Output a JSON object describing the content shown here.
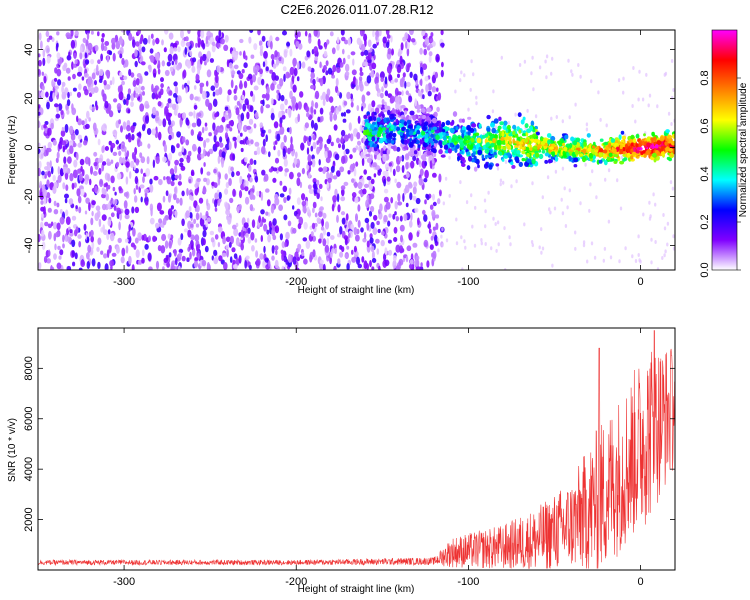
{
  "title": "C2E6.2026.011.07.28.R12",
  "chart_data": [
    {
      "type": "heatmap",
      "xlabel": "Height of straight line (km)",
      "ylabel": "Frequency (Hz)",
      "xlim": [
        -350,
        20
      ],
      "ylim": [
        -50,
        48
      ],
      "xticks": [
        -300,
        -200,
        -100,
        0
      ],
      "yticks": [
        -40,
        -20,
        0,
        20,
        40
      ],
      "colorbar": {
        "label": "Normalized spectral amplitude",
        "range": [
          0.0,
          1.0
        ],
        "ticks": [
          "0.0",
          "0.2",
          "0.4",
          "0.6",
          "0.8"
        ],
        "colormap": [
          "#ffffff",
          "#8000ff",
          "#0000ff",
          "#00ffff",
          "#00ff00",
          "#ffff00",
          "#ff8000",
          "#ff0000",
          "#ff00ff"
        ]
      },
      "signal_track": [
        {
          "x": -160,
          "f": 6,
          "amp": 0.45
        },
        {
          "x": -140,
          "f": 7,
          "amp": 0.35
        },
        {
          "x": -120,
          "f": 5,
          "amp": 0.4
        },
        {
          "x": -100,
          "f": 2,
          "amp": 0.5
        },
        {
          "x": -80,
          "f": 3,
          "amp": 0.6
        },
        {
          "x": -60,
          "f": 1,
          "amp": 0.7
        },
        {
          "x": -40,
          "f": -1,
          "amp": 0.65
        },
        {
          "x": -20,
          "f": -1,
          "amp": 0.75
        },
        {
          "x": 0,
          "f": 0,
          "amp": 0.95
        },
        {
          "x": 20,
          "f": 1,
          "amp": 0.85
        }
      ],
      "noise_region_end": -120
    },
    {
      "type": "line",
      "xlabel": "Height of straight line (km)",
      "ylabel": "SNR (10 * v/v)",
      "xlim": [
        -350,
        20
      ],
      "ylim": [
        0,
        9600
      ],
      "xticks": [
        -300,
        -200,
        -100,
        0
      ],
      "yticks": [
        2000,
        4000,
        6000,
        8000
      ],
      "color": "#ee3333",
      "series_envelope": [
        {
          "x": -350,
          "mean": 300,
          "spread": 100
        },
        {
          "x": -200,
          "mean": 300,
          "spread": 100
        },
        {
          "x": -120,
          "mean": 350,
          "spread": 150
        },
        {
          "x": -110,
          "mean": 700,
          "spread": 600
        },
        {
          "x": -80,
          "mean": 900,
          "spread": 900
        },
        {
          "x": -60,
          "mean": 1200,
          "spread": 1300
        },
        {
          "x": -40,
          "mean": 1800,
          "spread": 1800
        },
        {
          "x": -25,
          "mean": 2700,
          "spread": 3000
        },
        {
          "x": -10,
          "mean": 4000,
          "spread": 3200
        },
        {
          "x": 5,
          "mean": 5500,
          "spread": 3600
        },
        {
          "x": 20,
          "mean": 6500,
          "spread": 2400
        }
      ],
      "peaks": [
        {
          "x": -24,
          "y": 8800
        },
        {
          "x": 8,
          "y": 9500
        },
        {
          "x": 18,
          "y": 8500
        }
      ]
    }
  ]
}
